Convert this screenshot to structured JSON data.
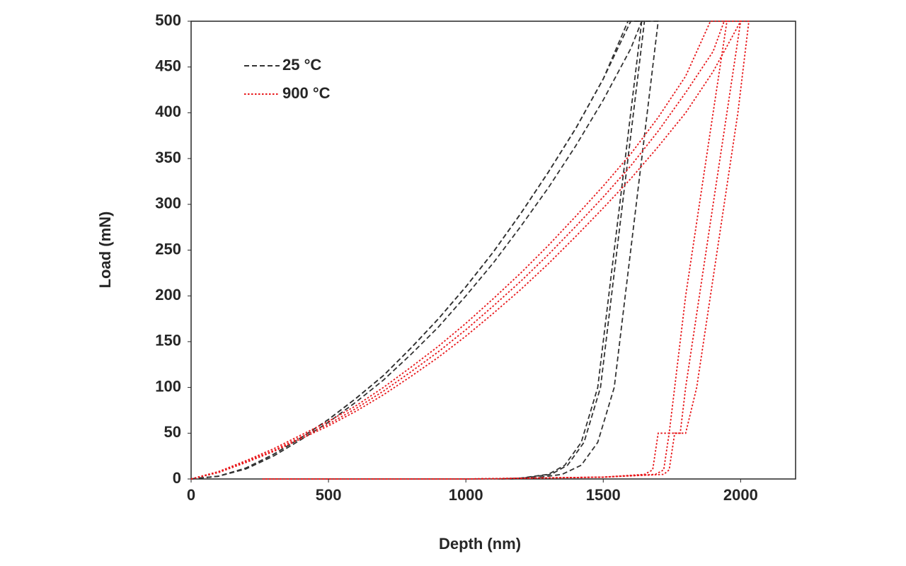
{
  "chart_data": {
    "type": "line",
    "x_label": "Depth (nm)",
    "y_label": "Load (mN)",
    "xlim": [
      0,
      2200
    ],
    "ylim": [
      0,
      500
    ],
    "xticks": [
      0,
      500,
      1000,
      1500,
      2000
    ],
    "yticks": [
      0,
      50,
      100,
      150,
      200,
      250,
      300,
      350,
      400,
      450,
      500
    ],
    "legend": "upper left",
    "series": [
      {
        "name": "25 °C",
        "color": "#333333",
        "dash": "dashed",
        "curves": [
          {
            "x": [
              0,
              100,
              200,
              300,
              400,
              500,
              600,
              700,
              800,
              900,
              1000,
              1100,
              1200,
              1300,
              1400,
              1500,
              1590,
              1640,
              1600,
              1560,
              1520,
              1480,
              1420,
              1360,
              1300,
              1200,
              1120
            ],
            "values": [
              0,
              3,
              12,
              27,
              45,
              65,
              88,
              113,
              143,
              175,
              210,
              248,
              290,
              335,
              383,
              437,
              500,
              500,
              400,
              300,
              200,
              100,
              40,
              15,
              5,
              1,
              0
            ]
          },
          {
            "x": [
              0,
              100,
              200,
              300,
              400,
              500,
              600,
              700,
              800,
              900,
              1000,
              1100,
              1200,
              1300,
              1400,
              1500,
              1600,
              1640,
              1700,
              1660,
              1620,
              1580,
              1540,
              1480,
              1420,
              1350,
              1250,
              1160
            ],
            "values": [
              0,
              3,
              11,
              25,
              43,
              62,
              84,
              108,
              136,
              166,
              200,
              236,
              276,
              318,
              364,
              414,
              470,
              500,
              500,
              400,
              300,
              200,
              100,
              40,
              15,
              5,
              1,
              0
            ]
          },
          {
            "x": [
              0,
              100,
              200,
              300,
              400,
              500,
              600,
              700,
              800,
              900,
              1000,
              1100,
              1200,
              1300,
              1400,
              1500,
              1600,
              1650,
              1610,
              1570,
              1530,
              1490,
              1430,
              1370,
              1310,
              1210,
              1130
            ],
            "values": [
              0,
              3,
              12,
              27,
              45,
              65,
              88,
              113,
              143,
              175,
              210,
              248,
              290,
              335,
              383,
              437,
              500,
              500,
              400,
              300,
              200,
              100,
              40,
              15,
              5,
              1,
              0
            ]
          }
        ]
      },
      {
        "name": "900 °C",
        "color": "#e8171a",
        "dash": "dotted",
        "curves": [
          {
            "x": [
              0,
              100,
              200,
              300,
              400,
              500,
              600,
              700,
              800,
              900,
              1000,
              1100,
              1200,
              1300,
              1400,
              1500,
              1600,
              1700,
              1800,
              1890,
              1950,
              1900,
              1850,
              1800,
              1760,
              1740,
              1700,
              1680,
              1650,
              1500,
              1000,
              260
            ],
            "values": [
              0,
              8,
              20,
              33,
              48,
              63,
              80,
              100,
              122,
              145,
              170,
              197,
              225,
              255,
              287,
              320,
              355,
              395,
              440,
              500,
              500,
              400,
              300,
              200,
              100,
              50,
              50,
              10,
              5,
              2,
              0,
              0
            ]
          },
          {
            "x": [
              0,
              100,
              200,
              300,
              400,
              500,
              600,
              700,
              800,
              900,
              1000,
              1100,
              1200,
              1300,
              1400,
              1500,
              1600,
              1700,
              1800,
              1900,
              1940,
              2000,
              1950,
              1900,
              1850,
              1800,
              1780,
              1740,
              1720,
              1690,
              1500,
              1000,
              260
            ],
            "values": [
              0,
              8,
              19,
              31,
              46,
              60,
              77,
              96,
              117,
              139,
              163,
              189,
              216,
              245,
              276,
              308,
              342,
              380,
              422,
              467,
              500,
              500,
              400,
              300,
              200,
              100,
              50,
              50,
              10,
              5,
              2,
              0,
              0
            ]
          },
          {
            "x": [
              0,
              100,
              200,
              300,
              400,
              500,
              600,
              700,
              800,
              900,
              1000,
              1100,
              1200,
              1300,
              1400,
              1500,
              1600,
              1700,
              1800,
              1900,
              2000,
              2030,
              1990,
              1940,
              1890,
              1840,
              1800,
              1760,
              1740,
              1720,
              1500,
              1000,
              260
            ],
            "values": [
              0,
              7,
              18,
              30,
              44,
              58,
              74,
              92,
              112,
              133,
              156,
              181,
              207,
              235,
              265,
              296,
              328,
              363,
              400,
              445,
              500,
              500,
              400,
              300,
              200,
              100,
              50,
              50,
              10,
              5,
              2,
              0,
              0
            ]
          }
        ]
      }
    ]
  }
}
